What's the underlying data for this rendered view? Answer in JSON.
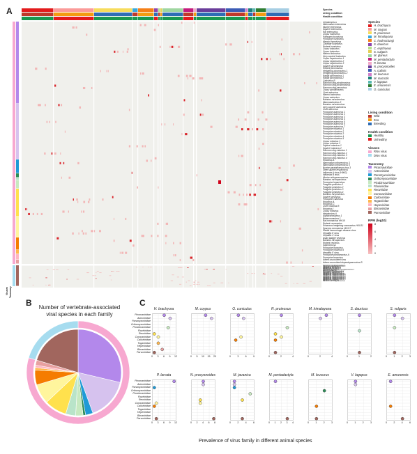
{
  "panel_labels": {
    "a": "A",
    "b": "B",
    "c": "C"
  },
  "heatmap": {
    "track_labels": [
      "Species",
      "Living condition",
      "Health condition"
    ],
    "side_labels": [
      "Viruses",
      "Taxonomy"
    ],
    "virus_rows": [
      "Hepatovirus A",
      "Mammalian enterovirus",
      "Murine enterovirus",
      "Squirrel enterovirus",
      "Rat enterovirus",
      "Copsu hunnivirus",
      "Pathogen hunnivirus",
      "Porcupine hunnivirus",
      "Marmot hunnivirus",
      "Caviidae hunnivirus",
      "Rodent hunnivirus",
      "Copsu kobuvirus",
      "Copsu kobuvirus",
      "Marmot kobuvirus",
      "Grey squirrel kobuvirus",
      "Copsu nepotrovirus 1",
      "Copsu nepotrovirus 2",
      "Copsu nepotrovirus 3",
      "Squirrel picornavirus",
      "Rodent picornavirus",
      "Hedgehog picornavirus 1",
      "Hedgehog picornavirus 2",
      "Rabbit picornavirus 1",
      "Rabbit picornavirus 2",
      "Calicivirus B",
      "Raccoon dog picobirnavirus",
      "Raccoon dog picobirnavirus",
      "Raccoon dog parvovirus",
      "Copsu picobirnavirus",
      "Civet astrovirus",
      "Marmot astrovirus",
      "Copsu astrovirus",
      "Bamboo rat astrovirus",
      "Mammastrovirus 3",
      "Bamboo rat astrovirus",
      "Grey squirrel astrovirus",
      "Civet astrovirus",
      "Porcupine astrovirus 1",
      "Porcupine astrovirus 2",
      "Porcupine astrovirus 3",
      "Porcupine astrovirus 4",
      "Porcupine astrovirus 5",
      "Porcupine astrovirus 6",
      "Porcupine astrovirus 7",
      "Porcupine rotavirus 1",
      "Porcupine rotavirus 2",
      "Porcupine rotavirus 3",
      "Porcupine rotavirus 4",
      "Porcupine rotavirus 5",
      "Copsu rotavirus 1",
      "Copsu rotavirus 2",
      "Squirrel rotavirus 1",
      "Squirrel rotavirus 2",
      "Raccoon dog rotavirus 1",
      "Raccoon dog rotavirus 2",
      "Raccoon dog rotavirus 3",
      "Raccoon dog rotavirus 4",
      "Rotavirus A",
      "Mammalian orthoreovirus 3",
      "Mammalian orthoreovirus 5",
      "Bovine parainfluenza virus 3",
      "Steel squirrel respirovirus",
      "Influenza A virus (H9N2)",
      "Influenza B virus",
      "Murine orthopneumovirus",
      "Bamboo rat hepacivirus",
      "Porcupine hepacivirus",
      "Pangolin pestivirus 1",
      "Pangolin pestivirus 2",
      "Pangolin pestivirus 3",
      "Pangolin pestivirus 4",
      "Bamboo rat pestivirus",
      "Squirrel pestivirus",
      "Porcupine calicivirus",
      "Rotavirus A",
      "Rotavirus C",
      "Civet rotavirus B",
      "Rotavirus I",
      "Copsu rotavirus",
      "Hepatovirus A",
      "Alphacoronavirus 1",
      "Betacoronavirus 1",
      "Bat coronavirus HKU8",
      "Rodent coronavirus",
      "Erinaceus hedgehog coronavirus HKU31",
      "Sparrow coronavirus HKU17",
      "Rabbit hemorrhagic disease virus",
      "Hepatitis E virus",
      "Hepatitis C virus",
      "Asian badger vesivirus",
      "Bamboo rat sapovirus",
      "Rodent vesivirus",
      "Sapovirus sp.",
      "Porcupine bocavirus",
      "Porcupine rotavirus 6",
      "Hepatitis E virus",
      "Porcupine picobirnavirus A",
      "Porcupine bocavirus",
      "Adeno-associated virus",
      "Adeno-associated dependoparvovirus B",
      "Carnivore protoparvovirus 1",
      "Carnivore amdoparvovirus 1",
      "Hedgehog bocavirus",
      "Hedgehog bocavirus 2",
      "Hedgehog bocavirus 3",
      "Porcupine bocavirus",
      "Raccoon dog and fox bocaparvovirus 1",
      "Lapine bocavirus",
      "Porcupine bocaparvovirus",
      "Porcupine chapparvovirus",
      "Hedgehog parvovirus 1",
      "Hedgehog chapparvovirus",
      "Hedgehog chapparvovirus 1",
      "Hedgehog chapparvovirus 2",
      "Hedgehog chapparvovirus 3",
      "Hedgehog chapparvovirus 4",
      "Hedgehog chapparvovirus 5",
      "Hedgehog chapparvovirus 6",
      "Hedgehog chapparvovirus 7",
      "Hedgehog chapparvovirus 8",
      "Pangolin parvovirus",
      "Bamboo rat chapparvovirus"
    ],
    "colors": {
      "cell_bg": "#f0f0ec",
      "hit_low": "#f2b6b6",
      "hit_high": "#d9262c",
      "grid": "#ffffff"
    }
  },
  "legend": {
    "species": {
      "title": "Species",
      "items": [
        {
          "label": "H. brachyura",
          "color": "#e31a1c"
        },
        {
          "label": "M. coypus",
          "color": "#fb9a99"
        },
        {
          "label": "R. pruinosus",
          "color": "#f7dc5c"
        },
        {
          "label": "M. himalayana",
          "color": "#3aa9dc"
        },
        {
          "label": "C. hodmcclungi",
          "color": "#f57f17"
        },
        {
          "label": "S. dauricus",
          "color": "#8e44ad"
        },
        {
          "label": "C. erythraeus",
          "color": "#b2df8a"
        },
        {
          "label": "S. vulgaris",
          "color": "#e6cf53"
        },
        {
          "label": "M. glareus",
          "color": "#9fd6a0"
        },
        {
          "label": "M. pentadactyla",
          "color": "#c51b7d"
        },
        {
          "label": "P. larvata",
          "color": "#f1a7c8"
        },
        {
          "label": "N. procyonoides",
          "color": "#6a3d9a"
        },
        {
          "label": "A. collaris",
          "color": "#3b5bb5"
        },
        {
          "label": "M. leucurus",
          "color": "#d17ecb"
        },
        {
          "label": "M. macrotis",
          "color": "#1b7f79"
        },
        {
          "label": "V. lagopus",
          "color": "#57b9b1"
        },
        {
          "label": "E. amurensis",
          "color": "#2e7d32"
        },
        {
          "label": "O. cuniculus",
          "color": "#a6cee3"
        }
      ]
    },
    "living": {
      "title": "Living condition",
      "items": [
        {
          "label": "Wild",
          "color": "#c0392b"
        },
        {
          "label": "Zoo",
          "color": "#f39c12"
        },
        {
          "label": "Breeding",
          "color": "#2f6db5"
        }
      ]
    },
    "health": {
      "title": "Health condition",
      "items": [
        {
          "label": "Healthy",
          "color": "#1a9850"
        },
        {
          "label": "Unhealthy",
          "color": "#e31a1c"
        }
      ]
    },
    "viruses": {
      "title": "Viruses",
      "items": [
        {
          "label": "RNA virus",
          "color": "#f7a8d0"
        },
        {
          "label": "DNA virus",
          "color": "#a6dcef"
        }
      ]
    },
    "taxonomy": {
      "title": "Taxonomy",
      "items": [
        {
          "label": "Picornaviridae",
          "color": "#b388eb"
        },
        {
          "label": "Astroviridae",
          "color": "#d6c2ee"
        },
        {
          "label": "Paramyxoviridae",
          "color": "#1f9ad6"
        },
        {
          "label": "Orthomyxoviridae",
          "color": "#2e8b57"
        },
        {
          "label": "Picobirnaviridae",
          "color": "#c7e9c0"
        },
        {
          "label": "Flaviviridae",
          "color": "#b9e4c9"
        },
        {
          "label": "Reoviridae",
          "color": "#ffe14d"
        },
        {
          "label": "Coronaviridae",
          "color": "#fff59d"
        },
        {
          "label": "Caliciviridae",
          "color": "#f57c00"
        },
        {
          "label": "Togaviridae",
          "color": "#ffb74d"
        },
        {
          "label": "Hepeviridae",
          "color": "#ffb6c1"
        },
        {
          "label": "Birnaviridae",
          "color": "#e8a0a0"
        },
        {
          "label": "Parvoviridae",
          "color": "#a1665e"
        }
      ]
    },
    "rpm": {
      "title": "RPM (log10)",
      "ticks": [
        "8",
        "6",
        "4",
        "2",
        "0"
      ]
    }
  },
  "pie": {
    "title": "Number of vertebrate-associated viral species in each family",
    "inner_values": [
      31,
      17,
      3,
      1,
      3,
      4,
      9,
      8,
      6,
      1,
      1,
      2,
      22
    ],
    "inner_colors": [
      "#b388eb",
      "#d6c2ee",
      "#1f9ad6",
      "#2e8b57",
      "#c7e9c0",
      "#b9e4c9",
      "#ffe14d",
      "#fff59d",
      "#f57c00",
      "#ffb74d",
      "#ffb6c1",
      "#e8a0a0",
      "#a1665e"
    ],
    "outer_values": [
      86,
      22
    ],
    "outer_colors": [
      "#f7a8d0",
      "#a6dcef"
    ]
  },
  "dotplot": {
    "xlabel": "Prevalence of virus family in different animal species",
    "families": [
      "Picornaviridae",
      "Astroviridae",
      "Paramyxoviridae",
      "Orthomyxoviridae",
      "Picobirnaviridae",
      "Flaviviridae",
      "Reoviridae",
      "Coronaviridae",
      "Caliciviridae",
      "Togaviridae",
      "Hepeviridae",
      "Birnaviridae",
      "Parvoviridae"
    ],
    "family_colors": [
      "#b388eb",
      "#d6c2ee",
      "#1f9ad6",
      "#2e8b57",
      "#c7e9c0",
      "#b9e4c9",
      "#ffe14d",
      "#fff59d",
      "#f57c00",
      "#ffb74d",
      "#ffb6c1",
      "#e8a0a0",
      "#a1665e"
    ],
    "panels": [
      {
        "title": "H. brachyura",
        "ticks": [
          "0",
          "3",
          "6",
          "9",
          "12"
        ],
        "xmax": 12,
        "points": [
          [
            0,
            6
          ],
          [
            1,
            9
          ],
          [
            4,
            8
          ],
          [
            6,
            1
          ],
          [
            7,
            3
          ],
          [
            9,
            3
          ],
          [
            11,
            5
          ],
          [
            12,
            1
          ]
        ]
      },
      {
        "title": "M. coypus",
        "ticks": [
          "0",
          "5",
          "10",
          "15",
          "20"
        ],
        "xmax": 20,
        "points": [
          [
            0,
            12
          ],
          [
            1,
            17
          ]
        ]
      },
      {
        "title": "O. cuniculus",
        "ticks": [
          "0",
          "3",
          "6",
          "9"
        ],
        "xmax": 9,
        "points": [
          [
            0,
            3
          ],
          [
            1,
            5
          ],
          [
            7,
            4
          ],
          [
            8,
            2
          ]
        ]
      },
      {
        "title": "R. pruinosus",
        "ticks": [
          "0",
          "2",
          "4"
        ],
        "xmax": 4,
        "points": [
          [
            0,
            2
          ],
          [
            4,
            3
          ],
          [
            6,
            1
          ],
          [
            7,
            2
          ],
          [
            8,
            1
          ],
          [
            12,
            1
          ]
        ]
      },
      {
        "title": "M. himalayana",
        "ticks": [
          "0",
          "2",
          "4"
        ],
        "xmax": 4,
        "points": [
          [
            0,
            3
          ],
          [
            1,
            2
          ]
        ]
      },
      {
        "title": "S. dauricus",
        "ticks": [
          "0",
          "1",
          "2"
        ],
        "xmax": 2,
        "points": [
          [
            0,
            1
          ],
          [
            5,
            1
          ],
          [
            12,
            1
          ]
        ]
      },
      {
        "title": "S. vulgaris",
        "ticks": [
          "0",
          "1",
          "2",
          "3"
        ],
        "xmax": 3,
        "points": [
          [
            0,
            1
          ],
          [
            1,
            2
          ],
          [
            4,
            1
          ],
          [
            12,
            1
          ]
        ]
      },
      {
        "title": "P. larvata",
        "ticks": [
          "0",
          "3",
          "6",
          "9",
          "12"
        ],
        "xmax": 12,
        "points": [
          [
            0,
            11
          ],
          [
            2,
            1
          ],
          [
            7,
            2
          ],
          [
            8,
            1
          ],
          [
            12,
            2
          ]
        ]
      },
      {
        "title": "N. procyonoides",
        "ticks": [
          "0",
          "2",
          "4",
          "6",
          "8"
        ],
        "xmax": 8,
        "points": [
          [
            0,
            4
          ],
          [
            1,
            4
          ],
          [
            6,
            3
          ],
          [
            7,
            3
          ],
          [
            12,
            8
          ]
        ]
      },
      {
        "title": "M. javanica",
        "ticks": [
          "0",
          "2",
          "4",
          "6"
        ],
        "xmax": 6,
        "points": [
          [
            0,
            1
          ],
          [
            1,
            1
          ],
          [
            2,
            1
          ],
          [
            4,
            5
          ],
          [
            6,
            3
          ],
          [
            12,
            3
          ]
        ]
      },
      {
        "title": "M. pentadactyla",
        "ticks": [
          "0",
          "1",
          "2",
          "3",
          "4"
        ],
        "xmax": 4,
        "points": [
          [
            0,
            1
          ],
          [
            12,
            3
          ]
        ]
      },
      {
        "title": "M. leucurus",
        "ticks": [
          "0",
          "1",
          "2",
          "3"
        ],
        "xmax": 3,
        "points": [
          [
            3,
            2
          ],
          [
            8,
            1
          ],
          [
            12,
            1
          ]
        ]
      },
      {
        "title": "V. lagopus",
        "ticks": [
          "0",
          "1",
          "2",
          "3"
        ],
        "xmax": 3,
        "points": [
          [
            0,
            1
          ],
          [
            1,
            1
          ]
        ]
      },
      {
        "title": "E. amurensis",
        "ticks": [
          "0",
          "2",
          "4",
          "6"
        ],
        "xmax": 6,
        "points": [
          [
            0,
            1
          ],
          [
            8,
            1
          ],
          [
            12,
            4
          ]
        ]
      }
    ]
  }
}
